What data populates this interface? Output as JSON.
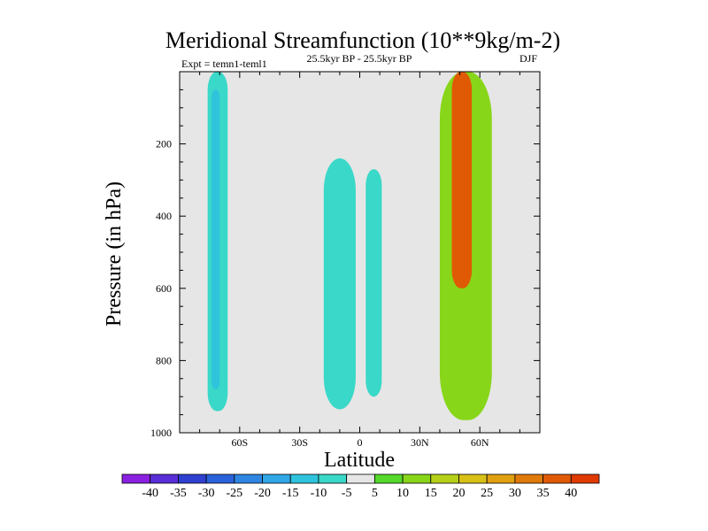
{
  "chart_data": {
    "type": "contour",
    "title": "Meridional Streamfunction (10**9kg/m-2)",
    "left_label": "Expt = temn1-teml1",
    "center_label": "25.5kyr BP - 25.5kyr BP",
    "right_label": "DJF",
    "xlabel": "Latitude",
    "ylabel": "Pressure (in hPa)",
    "xlim": [
      -90,
      90
    ],
    "ylim": [
      1000,
      0
    ],
    "x_ticks": [
      {
        "value": -60,
        "label": "60S"
      },
      {
        "value": -30,
        "label": "30S"
      },
      {
        "value": 0,
        "label": "0"
      },
      {
        "value": 30,
        "label": "30N"
      },
      {
        "value": 60,
        "label": "60N"
      }
    ],
    "y_ticks": [
      {
        "value": 200,
        "label": "200"
      },
      {
        "value": 400,
        "label": "400"
      },
      {
        "value": 600,
        "label": "600"
      },
      {
        "value": 800,
        "label": "800"
      },
      {
        "value": 1000,
        "label": "1000"
      }
    ],
    "colorbar": {
      "labels": [
        "-40",
        "-35",
        "-30",
        "-25",
        "-20",
        "-15",
        "-10",
        "-5",
        "5",
        "10",
        "15",
        "20",
        "25",
        "30",
        "35",
        "40"
      ],
      "colors": [
        "#8a20e0",
        "#5a2ed8",
        "#2f3fd0",
        "#2a62dc",
        "#2f86e2",
        "#30a7e6",
        "#2fc3dc",
        "#3ad8c8",
        "#e6e6e6",
        "#55d92a",
        "#88d61a",
        "#b6d018",
        "#d8c016",
        "#e0a010",
        "#e07a0a",
        "#e05a05",
        "#e03a00"
      ]
    },
    "regions": [
      {
        "name": "southern-high-lat-cell",
        "level": -5,
        "lat_range": [
          -76,
          -66
        ],
        "p_range": [
          0,
          940
        ]
      },
      {
        "name": "southern-high-lat-core",
        "level": -10,
        "lat_range": [
          -74,
          -70
        ],
        "p_range": [
          50,
          880
        ]
      },
      {
        "name": "tropical-cell-south",
        "level": -5,
        "lat_range": [
          -18,
          -2
        ],
        "p_range": [
          240,
          935
        ]
      },
      {
        "name": "tropical-cell-north",
        "level": -5,
        "lat_range": [
          3,
          11
        ],
        "p_range": [
          270,
          900
        ]
      },
      {
        "name": "northern-midlat-cell",
        "level": 10,
        "lat_range": [
          40,
          66
        ],
        "p_range": [
          0,
          965
        ]
      },
      {
        "name": "northern-midlat-core",
        "level": 35,
        "lat_range": [
          46,
          56
        ],
        "p_range": [
          0,
          600
        ]
      }
    ]
  }
}
